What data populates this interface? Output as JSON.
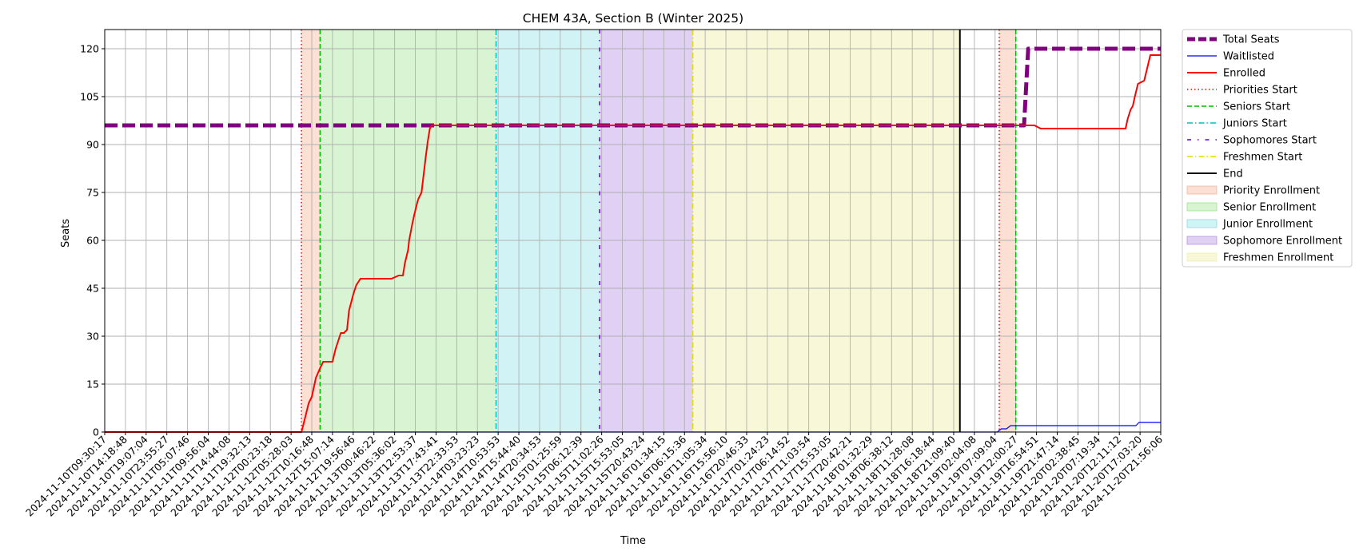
{
  "chart_data": {
    "type": "line",
    "title": "CHEM 43A, Section B (Winter 2025)",
    "xlabel": "Time",
    "ylabel": "Seats",
    "ylim": [
      0,
      126
    ],
    "yticks": [
      0,
      15,
      30,
      45,
      60,
      75,
      90,
      105,
      120
    ],
    "grid": true,
    "legend_position": "outside-right",
    "x_tick_labels": [
      "2024-11-10T09:30:17",
      "2024-11-10T14:18:48",
      "2024-11-10T19:07:04",
      "2024-11-10T23:55:27",
      "2024-11-11T05:07:46",
      "2024-11-11T09:56:04",
      "2024-11-11T14:44:08",
      "2024-11-11T19:32:13",
      "2024-11-12T00:23:18",
      "2024-11-12T05:28:03",
      "2024-11-12T10:16:48",
      "2024-11-12T15:07:14",
      "2024-11-12T19:56:46",
      "2024-11-13T00:46:22",
      "2024-11-13T05:36:02",
      "2024-11-13T12:53:37",
      "2024-11-13T17:43:41",
      "2024-11-13T22:33:53",
      "2024-11-14T03:23:23",
      "2024-11-14T10:53:53",
      "2024-11-14T15:44:40",
      "2024-11-14T20:34:53",
      "2024-11-15T01:25:59",
      "2024-11-15T06:12:39",
      "2024-11-15T11:02:26",
      "2024-11-15T15:53:05",
      "2024-11-15T20:43:24",
      "2024-11-16T01:34:15",
      "2024-11-16T06:15:36",
      "2024-11-16T11:05:34",
      "2024-11-16T15:56:10",
      "2024-11-16T20:46:33",
      "2024-11-17T01:24:23",
      "2024-11-17T06:14:52",
      "2024-11-17T11:03:54",
      "2024-11-17T15:53:05",
      "2024-11-17T20:42:21",
      "2024-11-18T01:32:29",
      "2024-11-18T06:38:12",
      "2024-11-18T11:28:08",
      "2024-11-18T16:18:44",
      "2024-11-18T21:09:40",
      "2024-11-19T02:04:08",
      "2024-11-19T07:09:04",
      "2024-11-19T12:00:27",
      "2024-11-19T16:54:51",
      "2024-11-19T21:47:14",
      "2024-11-20T02:38:45",
      "2024-11-20T07:19:34",
      "2024-11-20T12:11:12",
      "2024-11-20T17:03:20",
      "2024-11-20T21:56:06"
    ],
    "x_range": [
      0,
      51
    ],
    "series": [
      {
        "name": "Total Seats",
        "color": "#800080",
        "style": "dashed-thick",
        "x": [
          0,
          44.4,
          44.6,
          51
        ],
        "y": [
          96,
          96,
          120,
          120
        ]
      },
      {
        "name": "Waitlisted",
        "color": "#0000ff",
        "style": "solid-thin",
        "x": [
          0,
          43.1,
          43.3,
          43.55,
          43.75,
          49.8,
          49.95,
          51
        ],
        "y": [
          0,
          0,
          1,
          1,
          2,
          2,
          3,
          3
        ]
      },
      {
        "name": "Enrolled",
        "color": "#ff0000",
        "style": "solid",
        "x": [
          0,
          9.5,
          9.7,
          9.85,
          10.0,
          10.2,
          10.4,
          10.55,
          10.65,
          10.8,
          11.0,
          11.15,
          11.3,
          11.4,
          11.55,
          11.7,
          11.8,
          12.0,
          12.15,
          12.35,
          12.6,
          13.8,
          13.85,
          14.2,
          14.25,
          14.4,
          14.5,
          14.65,
          14.7,
          14.85,
          14.95,
          15.1,
          15.15,
          15.3,
          15.5,
          15.6,
          15.7,
          15.8,
          34.1,
          44.3,
          44.6,
          44.9,
          45.2,
          49.1,
          49.3,
          49.4,
          49.55,
          49.65,
          49.75,
          49.9,
          50.2,
          50.5,
          51
        ],
        "y": [
          0,
          0,
          5,
          9,
          11,
          17,
          20,
          22,
          22,
          22,
          22,
          26,
          29,
          31,
          31,
          32,
          38,
          43,
          46,
          48,
          48,
          48,
          48,
          49,
          49,
          49,
          53,
          57,
          60,
          65,
          68,
          72,
          73,
          75,
          86,
          91,
          95,
          96,
          96,
          96,
          96,
          96,
          95,
          95,
          95,
          98,
          101,
          102,
          105,
          109,
          110,
          118,
          118
        ]
      }
    ],
    "vertical_markers": [
      {
        "name": "Priorities Start",
        "x": 9.5,
        "color": "#ff0000",
        "style": "dotted"
      },
      {
        "name": "Seniors Start",
        "x": 10.4,
        "color": "#00bb00",
        "style": "dashed"
      },
      {
        "name": "Juniors Start",
        "x": 18.9,
        "color": "#00bfbf",
        "style": "dashdot"
      },
      {
        "name": "Sophomores Start",
        "x": 23.9,
        "color": "#5500dd",
        "style": "loosedash"
      },
      {
        "name": "Freshmen Start",
        "x": 28.4,
        "color": "#dddd00",
        "style": "dashdot"
      },
      {
        "name": "End",
        "x": 41.3,
        "color": "#000000",
        "style": "solid"
      },
      {
        "name": "Priorities Start",
        "x": 43.2,
        "color": "#ff0000",
        "style": "dotted"
      },
      {
        "name": "Seniors Start",
        "x": 44.0,
        "color": "#00bb00",
        "style": "dashed"
      }
    ],
    "shaded_regions": [
      {
        "name": "Priority Enrollment",
        "x0": 9.5,
        "x1": 10.4,
        "color": "#f4a582",
        "alpha": 0.35
      },
      {
        "name": "Senior Enrollment",
        "x0": 10.4,
        "x1": 18.9,
        "color": "#7ddc6a",
        "alpha": 0.3
      },
      {
        "name": "Junior Enrollment",
        "x0": 18.9,
        "x1": 23.9,
        "color": "#66d6dd",
        "alpha": 0.3
      },
      {
        "name": "Sophomore Enrollment",
        "x0": 23.9,
        "x1": 28.4,
        "color": "#a77ae0",
        "alpha": 0.35
      },
      {
        "name": "Freshmen Enrollment",
        "x0": 28.4,
        "x1": 41.3,
        "color": "#ecec8e",
        "alpha": 0.35
      },
      {
        "name": "Priority Enrollment",
        "x0": 43.2,
        "x1": 44.0,
        "color": "#f4a582",
        "alpha": 0.35
      }
    ],
    "legend": [
      {
        "label": "Total Seats",
        "kind": "line",
        "color": "#800080",
        "style": "dashed-thick"
      },
      {
        "label": "Waitlisted",
        "kind": "line",
        "color": "#0000ff",
        "style": "solid-thin"
      },
      {
        "label": "Enrolled",
        "kind": "line",
        "color": "#ff0000",
        "style": "solid"
      },
      {
        "label": "Priorities Start",
        "kind": "line",
        "color": "#ff0000",
        "style": "dotted"
      },
      {
        "label": "Seniors Start",
        "kind": "line",
        "color": "#00bb00",
        "style": "dashed"
      },
      {
        "label": "Juniors Start",
        "kind": "line",
        "color": "#00bfbf",
        "style": "dashdot"
      },
      {
        "label": "Sophomores Start",
        "kind": "line",
        "color": "#5500dd",
        "style": "loosedash"
      },
      {
        "label": "Freshmen Start",
        "kind": "line",
        "color": "#dddd00",
        "style": "dashdot"
      },
      {
        "label": "End",
        "kind": "line",
        "color": "#000000",
        "style": "solid"
      },
      {
        "label": "Priority Enrollment",
        "kind": "patch",
        "color": "#f4a582",
        "alpha": 0.35
      },
      {
        "label": "Senior Enrollment",
        "kind": "patch",
        "color": "#7ddc6a",
        "alpha": 0.3
      },
      {
        "label": "Junior Enrollment",
        "kind": "patch",
        "color": "#66d6dd",
        "alpha": 0.3
      },
      {
        "label": "Sophomore Enrollment",
        "kind": "patch",
        "color": "#a77ae0",
        "alpha": 0.35
      },
      {
        "label": "Freshmen Enrollment",
        "kind": "patch",
        "color": "#ecec8e",
        "alpha": 0.35
      }
    ]
  }
}
